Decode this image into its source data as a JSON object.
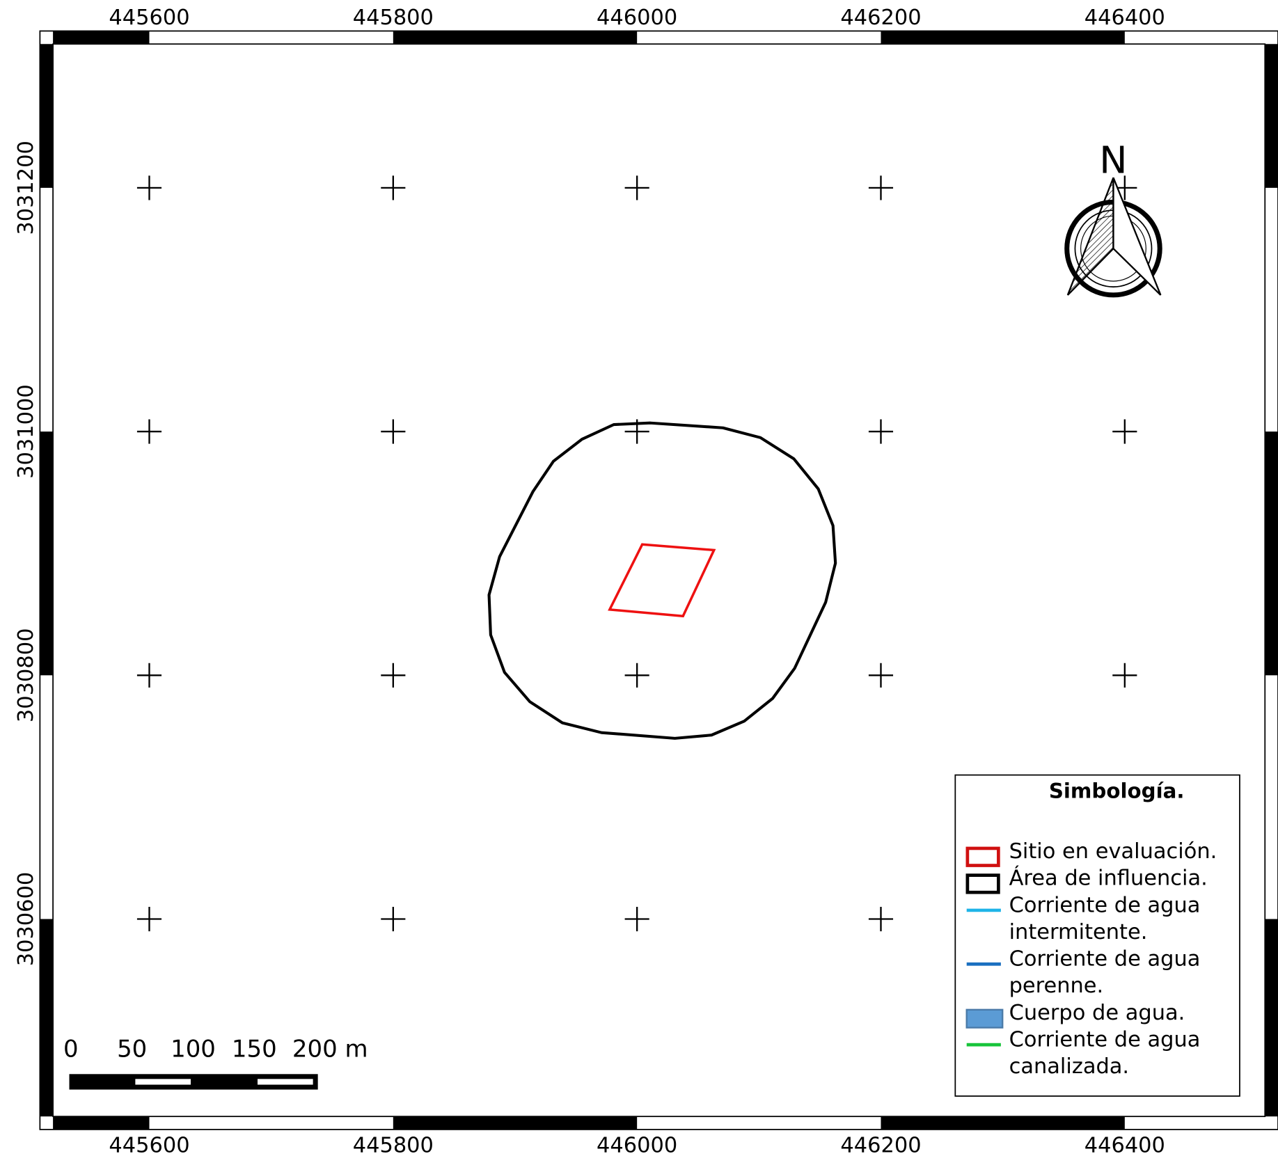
{
  "map": {
    "xlim": [
      445521,
      446515
    ],
    "ylim": [
      3030438,
      3031318
    ],
    "xticks": [
      445600,
      445800,
      446000,
      446200,
      446400
    ],
    "yticks": [
      3030600,
      3030800,
      3031000,
      3031200
    ],
    "north": "N",
    "scale_bar": {
      "labels": [
        "0",
        "50",
        "100",
        "150",
        "200 m"
      ]
    },
    "legend": {
      "title": "Simbología.",
      "items": [
        {
          "lines": [
            "Sitio en evaluación."
          ],
          "symbol": "box",
          "color": "#d01010"
        },
        {
          "lines": [
            "Área de influencia."
          ],
          "symbol": "box",
          "color": "#000000"
        },
        {
          "lines": [
            "Corriente de agua",
            "intermitente."
          ],
          "symbol": "line",
          "color": "#1fb4e8"
        },
        {
          "lines": [
            "Corriente de agua",
            "perenne."
          ],
          "symbol": "line",
          "color": "#1a6fc0"
        },
        {
          "lines": [
            "Cuerpo de agua."
          ],
          "symbol": "fill",
          "color": "#5b9bd5"
        },
        {
          "lines": [
            "Corriente de agua",
            "canalizada."
          ],
          "symbol": "line",
          "color": "#17c43a"
        }
      ]
    }
  }
}
